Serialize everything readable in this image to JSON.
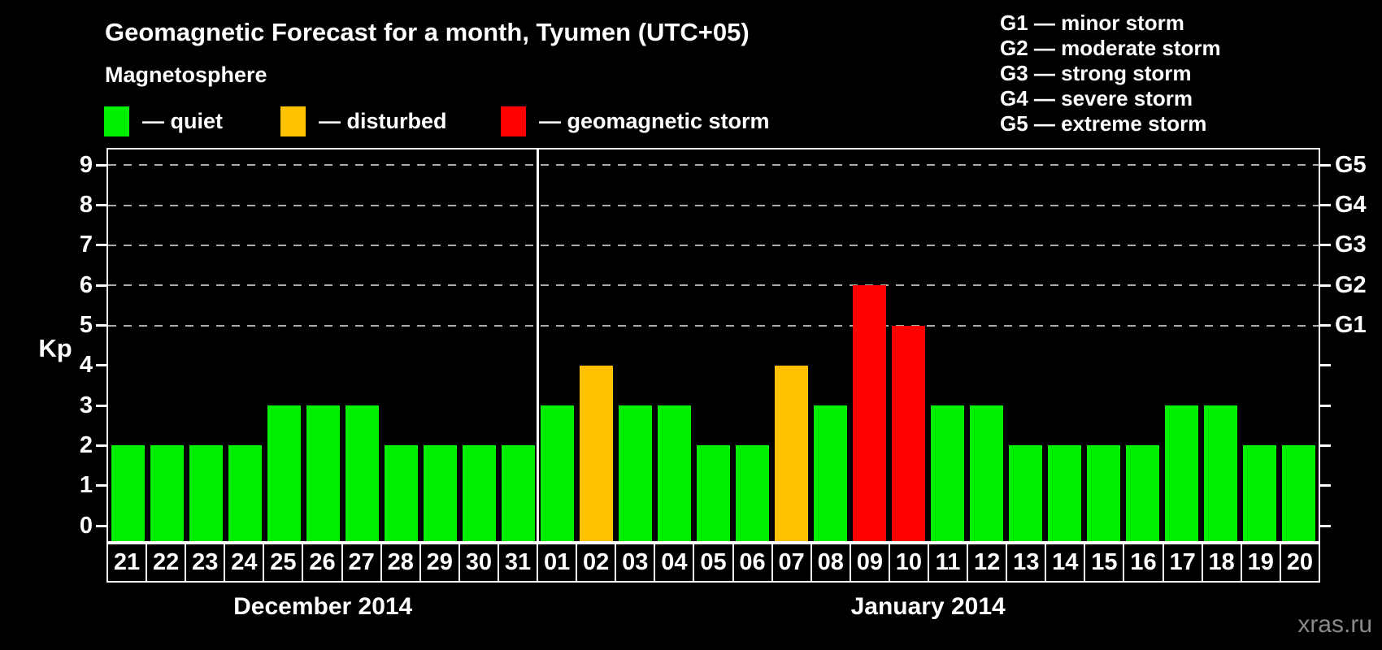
{
  "title": "Geomagnetic Forecast for a month, Tyumen (UTC+05)",
  "subtitle": "Magnetosphere",
  "legend": {
    "items": [
      {
        "key": "quiet",
        "label": "— quiet",
        "color": "#00ee00"
      },
      {
        "key": "disturbed",
        "label": "— disturbed",
        "color": "#ffc000"
      },
      {
        "key": "storm",
        "label": "— geomagnetic storm",
        "color": "#ff0000"
      }
    ]
  },
  "g_scale_legend": [
    "G1 — minor storm",
    "G2 — moderate storm",
    "G3 — strong storm",
    "G4 — severe storm",
    "G5 — extreme storm"
  ],
  "watermark": "xras.ru",
  "chart_data": {
    "type": "bar",
    "title": "Geomagnetic Forecast for a month, Tyumen (UTC+05)",
    "ylabel": "Kp",
    "ylim": [
      0,
      9
    ],
    "yticks": [
      0,
      1,
      2,
      3,
      4,
      5,
      6,
      7,
      8,
      9
    ],
    "gridlines_at_kp": [
      5,
      6,
      7,
      8,
      9
    ],
    "grid": "dashed horizontal lines at Kp 5-9 only",
    "legend_position": "top",
    "right_axis": [
      {
        "kp": 5,
        "label": "G1"
      },
      {
        "kp": 6,
        "label": "G2"
      },
      {
        "kp": 7,
        "label": "G3"
      },
      {
        "kp": 8,
        "label": "G4"
      },
      {
        "kp": 9,
        "label": "G5"
      }
    ],
    "status_colors": {
      "quiet": "#00ee00",
      "disturbed": "#ffc000",
      "storm": "#ff0000"
    },
    "months": [
      {
        "label": "December 2014",
        "days": [
          {
            "day": "21",
            "kp": 2,
            "status": "quiet"
          },
          {
            "day": "22",
            "kp": 2,
            "status": "quiet"
          },
          {
            "day": "23",
            "kp": 2,
            "status": "quiet"
          },
          {
            "day": "24",
            "kp": 2,
            "status": "quiet"
          },
          {
            "day": "25",
            "kp": 3,
            "status": "quiet"
          },
          {
            "day": "26",
            "kp": 3,
            "status": "quiet"
          },
          {
            "day": "27",
            "kp": 3,
            "status": "quiet"
          },
          {
            "day": "28",
            "kp": 2,
            "status": "quiet"
          },
          {
            "day": "29",
            "kp": 2,
            "status": "quiet"
          },
          {
            "day": "30",
            "kp": 2,
            "status": "quiet"
          },
          {
            "day": "31",
            "kp": 2,
            "status": "quiet"
          }
        ]
      },
      {
        "label": "January 2014",
        "days": [
          {
            "day": "01",
            "kp": 3,
            "status": "quiet"
          },
          {
            "day": "02",
            "kp": 4,
            "status": "disturbed"
          },
          {
            "day": "03",
            "kp": 3,
            "status": "quiet"
          },
          {
            "day": "04",
            "kp": 3,
            "status": "quiet"
          },
          {
            "day": "05",
            "kp": 2,
            "status": "quiet"
          },
          {
            "day": "06",
            "kp": 2,
            "status": "quiet"
          },
          {
            "day": "07",
            "kp": 4,
            "status": "disturbed"
          },
          {
            "day": "08",
            "kp": 3,
            "status": "quiet"
          },
          {
            "day": "09",
            "kp": 6,
            "status": "storm"
          },
          {
            "day": "10",
            "kp": 5,
            "status": "storm"
          },
          {
            "day": "11",
            "kp": 3,
            "status": "quiet"
          },
          {
            "day": "12",
            "kp": 3,
            "status": "quiet"
          },
          {
            "day": "13",
            "kp": 2,
            "status": "quiet"
          },
          {
            "day": "14",
            "kp": 2,
            "status": "quiet"
          },
          {
            "day": "15",
            "kp": 2,
            "status": "quiet"
          },
          {
            "day": "16",
            "kp": 2,
            "status": "quiet"
          },
          {
            "day": "17",
            "kp": 3,
            "status": "quiet"
          },
          {
            "day": "18",
            "kp": 3,
            "status": "quiet"
          },
          {
            "day": "19",
            "kp": 2,
            "status": "quiet"
          },
          {
            "day": "20",
            "kp": 2,
            "status": "quiet"
          }
        ]
      }
    ]
  }
}
